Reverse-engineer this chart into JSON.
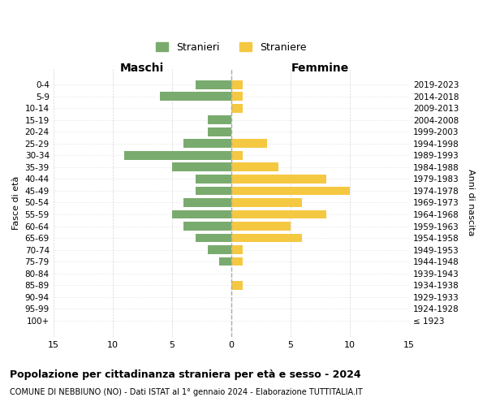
{
  "age_groups": [
    "0-4",
    "5-9",
    "10-14",
    "15-19",
    "20-24",
    "25-29",
    "30-34",
    "35-39",
    "40-44",
    "45-49",
    "50-54",
    "55-59",
    "60-64",
    "65-69",
    "70-74",
    "75-79",
    "80-84",
    "85-89",
    "90-94",
    "95-99",
    "100+"
  ],
  "birth_years": [
    "2019-2023",
    "2014-2018",
    "2009-2013",
    "2004-2008",
    "1999-2003",
    "1994-1998",
    "1989-1993",
    "1984-1988",
    "1979-1983",
    "1974-1978",
    "1969-1973",
    "1964-1968",
    "1959-1963",
    "1954-1958",
    "1949-1953",
    "1944-1948",
    "1939-1943",
    "1934-1938",
    "1929-1933",
    "1924-1928",
    "≤ 1923"
  ],
  "males": [
    3,
    6,
    0,
    2,
    2,
    4,
    9,
    5,
    3,
    3,
    4,
    5,
    4,
    3,
    2,
    1,
    0,
    0,
    0,
    0,
    0
  ],
  "females": [
    1,
    1,
    1,
    0,
    0,
    3,
    1,
    4,
    8,
    10,
    6,
    8,
    5,
    6,
    1,
    1,
    0,
    1,
    0,
    0,
    0
  ],
  "male_color": "#7aab6e",
  "female_color": "#f5c842",
  "background_color": "#ffffff",
  "grid_color": "#cccccc",
  "title": "Popolazione per cittadinanza straniera per età e sesso - 2024",
  "subtitle": "COMUNE DI NEBBIUNO (NO) - Dati ISTAT al 1° gennaio 2024 - Elaborazione TUTTITALIA.IT",
  "xlabel_left": "Maschi",
  "xlabel_right": "Femmine",
  "ylabel_left": "Fasce di età",
  "ylabel_right": "Anni di nascita",
  "legend_males": "Stranieri",
  "legend_females": "Straniere",
  "xlim": 15,
  "bar_height": 0.75
}
